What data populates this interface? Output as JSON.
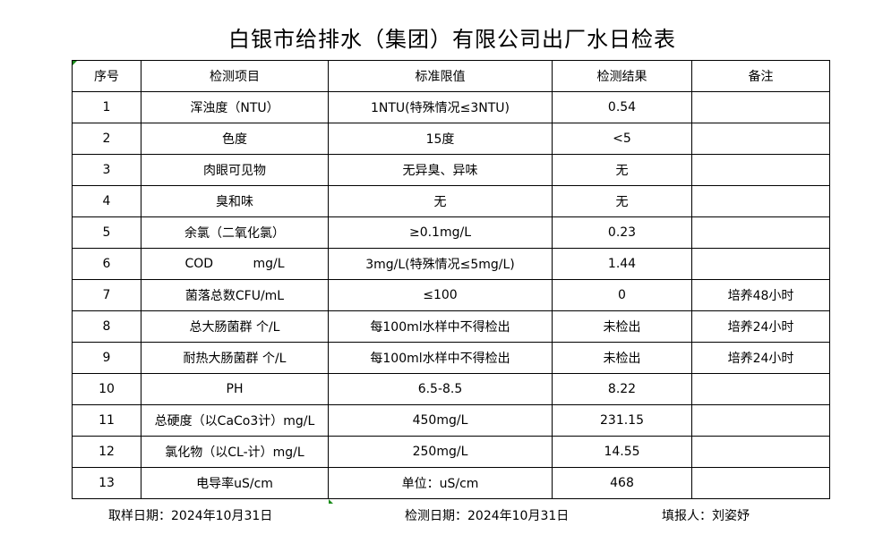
{
  "title": "白银市给排水（集团）有限公司出厂水日检表",
  "headers": [
    "序号",
    "检测项目",
    "标准限值",
    "检测结果",
    "备注"
  ],
  "rows": [
    [
      "1",
      "浑浊度（NTU）",
      "1NTU(特殊情况≤3NTU)",
      "0.54",
      ""
    ],
    [
      "2",
      "色度",
      "15度",
      "<5",
      ""
    ],
    [
      "3",
      "肉眼可见物",
      "无异臭、异味",
      "无",
      ""
    ],
    [
      "4",
      "臭和味",
      "无",
      "无",
      ""
    ],
    [
      "5",
      "余氯（二氧化氯）",
      "≥0.1mg/L",
      "0.23",
      ""
    ],
    [
      "6",
      "COD          mg/L",
      "3mg/L(特殊情况≤5mg/L)",
      "1.44",
      ""
    ],
    [
      "7",
      "菌落总数CFU/mL",
      "≤100",
      "0",
      "培养48小时"
    ],
    [
      "8",
      "总大肠菌群 个/L",
      "每100ml水样中不得检出",
      "未检出",
      "培养24小时"
    ],
    [
      "9",
      "耐热大肠菌群 个/L",
      "每100ml水样中不得检出",
      "未检出",
      "培养24小时"
    ],
    [
      "10",
      "PH",
      "6.5-8.5",
      "8.22",
      ""
    ],
    [
      "11",
      "总硬度（以CaCo3计）mg/L",
      "450mg/L",
      "231.15",
      ""
    ],
    [
      "12",
      "氯化物（以CL-计）mg/L",
      "250mg/L",
      "14.55",
      ""
    ],
    [
      "13",
      "电导率uS/cm",
      "单位：uS/cm",
      "468",
      ""
    ]
  ],
  "footer": {
    "sampling_date": "取样日期：2024年10月31日",
    "test_date": "检测日期：2024年10月31日",
    "reporter": "填报人：刘姿妤"
  }
}
